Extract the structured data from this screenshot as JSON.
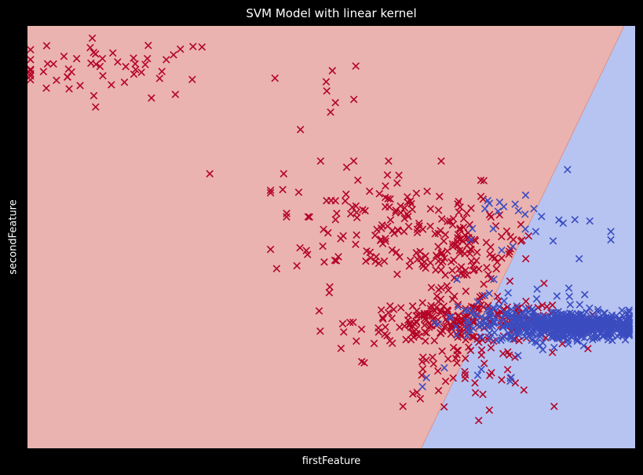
{
  "chart_data": {
    "type": "scatter",
    "title": "SVM Model with linear kernel",
    "xlabel": "firstFeature",
    "ylabel": "secondFeature",
    "xlim": [
      0,
      1
    ],
    "ylim": [
      0,
      1
    ],
    "ticks_shown": false,
    "grid": false,
    "marker": "x",
    "colors": {
      "figure_background": "#000000",
      "text": "#ffffff",
      "region_class_0": "#eab3b0",
      "region_class_1": "#b7c4f2",
      "points_class_0": "#b40426",
      "points_class_1": "#3b4cc0"
    },
    "decision_boundary": {
      "kernel": "linear",
      "points": [
        [
          0.648,
          0.0
        ],
        [
          0.982,
          1.0
        ]
      ],
      "region_left": "class_0",
      "region_right": "class_1"
    },
    "clusters": [
      {
        "name": "top_left_group",
        "series": "class_0",
        "n": 55,
        "cx": 0.14,
        "cy": 0.9,
        "sx": 0.09,
        "sy": 0.035,
        "xmin": 0.005,
        "xmax": 0.33,
        "ymin": 0.8,
        "ymax": 0.99
      },
      {
        "name": "top_left_tail",
        "series": "class_0",
        "n": 9,
        "cx": 0.45,
        "cy": 0.83,
        "sx": 0.06,
        "sy": 0.05,
        "xmin": 0.38,
        "xmax": 0.56,
        "ymin": 0.7,
        "ymax": 0.92
      },
      {
        "name": "upper_middle",
        "series": "class_0",
        "n": 150,
        "cx": 0.6,
        "cy": 0.53,
        "sx": 0.1,
        "sy": 0.07,
        "xmin": 0.4,
        "xmax": 0.85,
        "ymin": 0.33,
        "ymax": 0.68
      },
      {
        "name": "dense_upper",
        "series": "class_0",
        "n": 90,
        "cx": 0.72,
        "cy": 0.46,
        "sx": 0.045,
        "sy": 0.04,
        "xmin": 0.6,
        "xmax": 0.82,
        "ymin": 0.36,
        "ymax": 0.58
      },
      {
        "name": "red_band",
        "series": "class_0",
        "n": 220,
        "cx": 0.72,
        "cy": 0.3,
        "sx": 0.09,
        "sy": 0.025,
        "xmin": 0.48,
        "xmax": 0.93,
        "ymin": 0.2,
        "ymax": 0.38
      },
      {
        "name": "red_lower",
        "series": "class_0",
        "n": 70,
        "cx": 0.7,
        "cy": 0.2,
        "sx": 0.07,
        "sy": 0.06,
        "xmin": 0.55,
        "xmax": 0.88,
        "ymin": 0.04,
        "ymax": 0.3
      },
      {
        "name": "red_outliers",
        "series": "class_0",
        "n": 4,
        "cx": 0.5,
        "cy": 0.45,
        "sx": 0.15,
        "sy": 0.2,
        "xmin": 0.3,
        "xmax": 0.95,
        "ymin": 0.05,
        "ymax": 0.65
      },
      {
        "name": "blue_band",
        "series": "class_1",
        "n": 450,
        "cx": 0.88,
        "cy": 0.29,
        "sx": 0.07,
        "sy": 0.018,
        "xmin": 0.63,
        "xmax": 0.99,
        "ymin": 0.23,
        "ymax": 0.34
      },
      {
        "name": "blue_core",
        "series": "class_1",
        "n": 150,
        "cx": 0.92,
        "cy": 0.29,
        "sx": 0.035,
        "sy": 0.012,
        "xmin": 0.84,
        "xmax": 0.98,
        "ymin": 0.26,
        "ymax": 0.32
      },
      {
        "name": "blue_upper",
        "series": "class_1",
        "n": 28,
        "cx": 0.82,
        "cy": 0.53,
        "sx": 0.06,
        "sy": 0.05,
        "xmin": 0.55,
        "xmax": 0.96,
        "ymin": 0.43,
        "ymax": 0.66
      },
      {
        "name": "blue_mid",
        "series": "class_1",
        "n": 45,
        "cx": 0.8,
        "cy": 0.33,
        "sx": 0.08,
        "sy": 0.03,
        "xmin": 0.55,
        "xmax": 0.98,
        "ymin": 0.22,
        "ymax": 0.4
      },
      {
        "name": "blue_low",
        "series": "class_1",
        "n": 8,
        "cx": 0.78,
        "cy": 0.17,
        "sx": 0.05,
        "sy": 0.04,
        "xmin": 0.65,
        "xmax": 0.95,
        "ymin": 0.05,
        "ymax": 0.22
      }
    ]
  }
}
